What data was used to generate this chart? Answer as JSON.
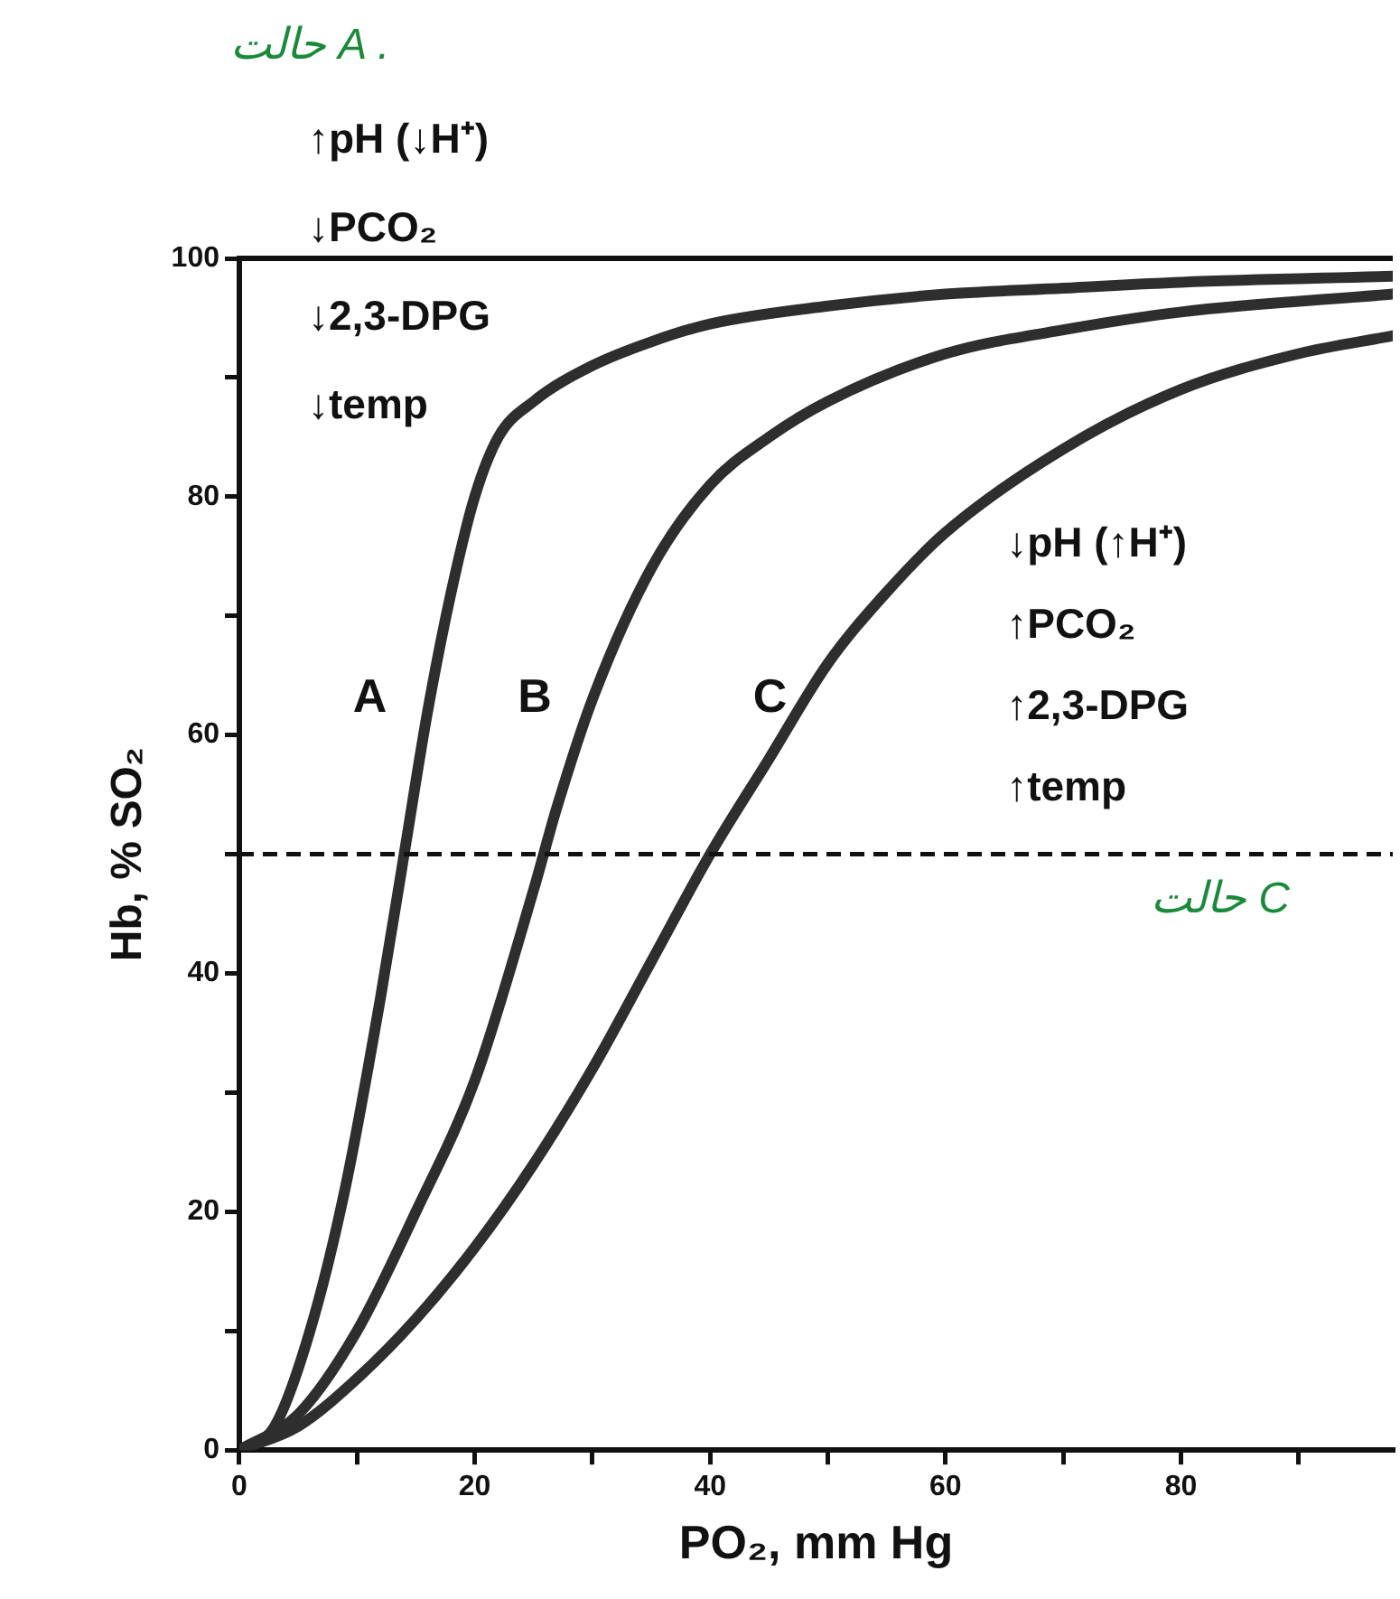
{
  "chart_data": {
    "type": "line",
    "xlabel": "PO₂, mm Hg",
    "ylabel": "Hb, % SO₂",
    "xlim": [
      0,
      98
    ],
    "xticks": [
      0,
      {
        "value": 10,
        "label": null
      },
      20,
      {
        "value": 30,
        "label": null
      },
      40,
      {
        "value": 50,
        "label": null
      },
      60,
      {
        "value": 70,
        "label": null
      },
      80,
      {
        "value": 90,
        "label": null
      }
    ],
    "ylim": [
      0,
      100
    ],
    "yticks": [
      0,
      {
        "value": 10,
        "label": null
      },
      20,
      {
        "value": 30,
        "label": null
      },
      40,
      {
        "value": 50,
        "label": null
      },
      60,
      {
        "value": 70,
        "label": null
      },
      80,
      {
        "value": 90,
        "label": null
      },
      100
    ],
    "grid": false,
    "legend": false,
    "marker": "none",
    "line_style": "solid",
    "series": [
      {
        "name": "A",
        "color": "#2e2e2e",
        "x": [
          0,
          3,
          6,
          9,
          12,
          14,
          16,
          18,
          20,
          22,
          25,
          30,
          35,
          40,
          50,
          60,
          70,
          80,
          98
        ],
        "values": [
          0,
          2,
          10,
          22,
          38,
          50,
          62,
          72,
          80,
          85,
          88,
          91,
          93,
          94.5,
          96,
          97,
          97.5,
          98,
          98.5
        ]
      },
      {
        "name": "B",
        "color": "#2e2e2e",
        "x": [
          0,
          5,
          10,
          15,
          20,
          25,
          27,
          30,
          35,
          40,
          45,
          50,
          60,
          70,
          80,
          98
        ],
        "values": [
          0,
          3,
          10,
          20,
          31,
          47,
          54,
          63,
          74,
          81,
          85,
          88,
          92,
          94,
          95.5,
          97
        ]
      },
      {
        "name": "C",
        "color": "#2e2e2e",
        "x": [
          0,
          5,
          10,
          15,
          20,
          25,
          30,
          35,
          40,
          45,
          50,
          55,
          60,
          70,
          80,
          90,
          98
        ],
        "values": [
          0,
          2,
          6,
          11,
          17,
          24,
          32,
          41,
          50,
          58,
          66,
          72,
          77,
          84,
          89,
          92,
          93.5
        ]
      }
    ],
    "ref_lines": [
      {
        "axis": "y",
        "value": 50,
        "line_style": "dashed",
        "color": "#111111"
      }
    ],
    "annotations": [
      "حالت A .",
      "↑pH (↓H⁺)",
      "↓PCO₂",
      "↓2,3-DPG",
      "↓temp",
      "↓pH (↑H⁺)",
      "↑PCO₂",
      "↑2,3-DPG",
      "↑temp",
      "حالت C"
    ]
  }
}
